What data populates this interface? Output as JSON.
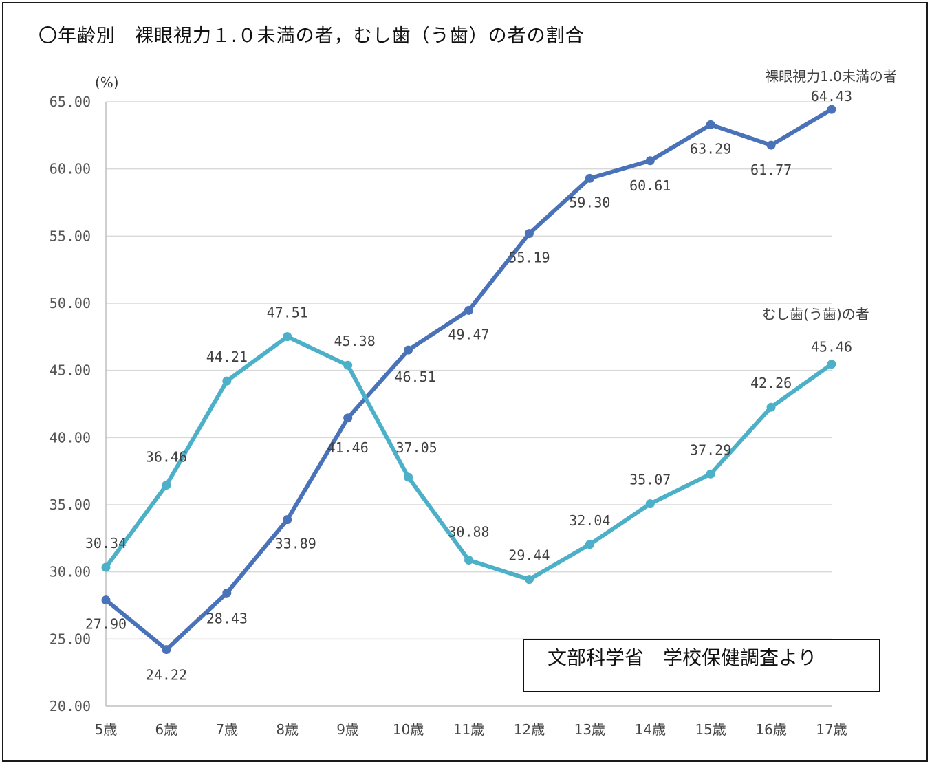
{
  "title": "〇年齢別　裸眼視力１.０未満の者，むし歯（う歯）の者の割合",
  "source_note": "文部科学省　学校保健調査より",
  "chart_data": {
    "type": "line",
    "ylabel": "(%)",
    "ylim": [
      20,
      65
    ],
    "yticks": [
      "20.00",
      "25.00",
      "30.00",
      "35.00",
      "40.00",
      "45.00",
      "50.00",
      "55.00",
      "60.00",
      "65.00"
    ],
    "grid": true,
    "categories": [
      "5歳",
      "6歳",
      "7歳",
      "8歳",
      "9歳",
      "10歳",
      "11歳",
      "12歳",
      "13歳",
      "14歳",
      "15歳",
      "16歳",
      "17歳"
    ],
    "series": [
      {
        "name": "裸眼視力1.0未満の者",
        "color": "#4a72b8",
        "values": [
          27.9,
          24.22,
          28.43,
          33.89,
          41.46,
          46.51,
          49.47,
          55.19,
          59.3,
          60.61,
          63.29,
          61.77,
          64.43
        ],
        "labels": [
          "27.90",
          "24.22",
          "28.43",
          "33.89",
          "41.46",
          "46.51",
          "49.47",
          "55.19",
          "59.30",
          "60.61",
          "63.29",
          "61.77",
          "64.43"
        ]
      },
      {
        "name": "むし歯(う歯)の者",
        "color": "#4bb0c8",
        "values": [
          30.34,
          36.46,
          44.21,
          47.51,
          45.38,
          37.05,
          30.88,
          29.44,
          32.04,
          35.07,
          37.29,
          42.26,
          45.46
        ],
        "labels": [
          "30.34",
          "36.46",
          "44.21",
          "47.51",
          "45.38",
          "37.05",
          "30.88",
          "29.44",
          "32.04",
          "35.07",
          "37.29",
          "42.26",
          "45.46"
        ]
      }
    ]
  }
}
